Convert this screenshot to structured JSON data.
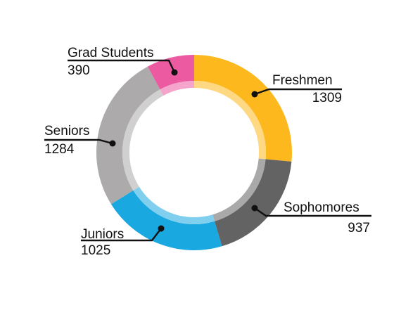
{
  "chart_data": {
    "type": "pie",
    "donut": true,
    "title": "",
    "legend": "none",
    "slices": [
      {
        "label": "Freshmen",
        "value": 1309,
        "color": "#FDB81E"
      },
      {
        "label": "Sophomores",
        "value": 937,
        "color": "#636363"
      },
      {
        "label": "Juniors",
        "value": 1025,
        "color": "#1AA8E0"
      },
      {
        "label": "Seniors",
        "value": 1284,
        "color": "#ACAAAA"
      },
      {
        "label": "Grad Students",
        "value": 390,
        "color": "#EC5BA2"
      }
    ]
  }
}
